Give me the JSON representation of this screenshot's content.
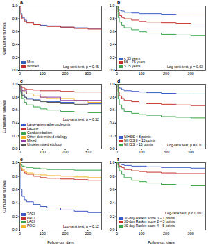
{
  "chart_data": [
    {
      "type": "line",
      "title": "a",
      "ylabel": "Cumulative survival",
      "x": [
        0,
        5,
        10,
        20,
        30,
        60,
        90,
        120,
        180,
        240,
        300,
        360
      ],
      "xlim": [
        0,
        360
      ],
      "xticks": [
        0,
        100,
        200,
        300
      ],
      "ylim": [
        0,
        1
      ],
      "yticks": [
        {
          "value": 0,
          "label": "0.0"
        },
        0.2,
        0.4,
        0.6,
        0.8,
        {
          "value": 1,
          "label": "1.0"
        }
      ],
      "line_style": "step",
      "legend": "bottom-left",
      "grid": false,
      "annotations": [
        "Log-rank test, p = 0.45"
      ],
      "series": [
        {
          "name": "Men",
          "color": "#3b5bc6",
          "values": [
            1,
            0.88,
            0.82,
            0.78,
            0.75,
            0.72,
            0.7,
            0.69,
            0.67,
            0.66,
            0.65,
            0.65
          ]
        },
        {
          "name": "Women",
          "color": "#c4302b",
          "values": [
            1,
            0.86,
            0.8,
            0.76,
            0.74,
            0.71,
            0.69,
            0.68,
            0.67,
            0.65,
            0.64,
            0.63
          ]
        }
      ]
    },
    {
      "type": "line",
      "title": "b",
      "x": [
        0,
        5,
        10,
        20,
        30,
        60,
        90,
        120,
        180,
        240,
        300,
        360
      ],
      "xlim": [
        0,
        360
      ],
      "xticks": [
        0,
        100,
        200,
        300
      ],
      "ylim": [
        0,
        1
      ],
      "yticks": [
        {
          "value": 0,
          "label": "0.0"
        },
        0.2,
        0.4,
        0.6,
        0.8,
        {
          "value": 1,
          "label": "1.0"
        }
      ],
      "line_style": "step",
      "legend": "bottom-left",
      "grid": false,
      "annotations": [
        "Log-rank test, p = 0.02"
      ],
      "series": [
        {
          "name": "≤ 55 years",
          "color": "#3b5bc6",
          "values": [
            1,
            0.95,
            0.93,
            0.92,
            0.9,
            0.89,
            0.88,
            0.88,
            0.87,
            0.86,
            0.86,
            0.86
          ]
        },
        {
          "name": "56 – 75 years",
          "color": "#c4302b",
          "values": [
            1,
            0.9,
            0.85,
            0.82,
            0.8,
            0.78,
            0.76,
            0.75,
            0.74,
            0.73,
            0.72,
            0.72
          ]
        },
        {
          "name": "> 75 years",
          "color": "#3aa54a",
          "values": [
            1,
            0.82,
            0.75,
            0.7,
            0.66,
            0.63,
            0.6,
            0.58,
            0.56,
            0.55,
            0.54,
            0.53
          ]
        }
      ]
    },
    {
      "type": "line",
      "title": "c",
      "ylabel": "Cumulative survival",
      "x": [
        0,
        5,
        10,
        20,
        30,
        60,
        90,
        120,
        180,
        240,
        300,
        360
      ],
      "xlim": [
        0,
        360
      ],
      "xticks": [
        0,
        100,
        200,
        300
      ],
      "ylim": [
        0,
        1
      ],
      "yticks": [
        {
          "value": 0,
          "label": "0.0"
        },
        0.2,
        0.4,
        0.6,
        0.8,
        {
          "value": 1,
          "label": "1.0"
        }
      ],
      "line_style": "step",
      "legend": "bottom-left",
      "grid": false,
      "annotations": [
        "Log-rank test, p = 0.52"
      ],
      "series": [
        {
          "name": "Large-artery atherosclerosis",
          "color": "#3b5bc6",
          "values": [
            1,
            0.9,
            0.85,
            0.8,
            0.78,
            0.76,
            0.74,
            0.73,
            0.72,
            0.71,
            0.7,
            0.7
          ]
        },
        {
          "name": "Lacune",
          "color": "#c4302b",
          "values": [
            1,
            0.97,
            0.95,
            0.93,
            0.92,
            0.91,
            0.9,
            0.9,
            0.89,
            0.88,
            0.88,
            0.88
          ]
        },
        {
          "name": "Cardioembolism",
          "color": "#3aa54a",
          "values": [
            1,
            0.85,
            0.78,
            0.72,
            0.68,
            0.65,
            0.62,
            0.6,
            0.58,
            0.57,
            0.56,
            0.55
          ]
        },
        {
          "name": "Other determined etiology",
          "color": "#f0b429",
          "values": [
            1,
            0.92,
            0.9,
            0.88,
            0.85,
            0.82,
            0.8,
            0.78,
            0.78,
            0.75,
            0.72,
            0.72
          ]
        },
        {
          "name": "Mixed",
          "color": "#8b3fa8",
          "values": [
            1,
            0.95,
            0.9,
            0.9,
            0.85,
            0.85,
            0.8,
            0.8,
            0.75,
            0.75,
            0.75,
            0.75
          ]
        },
        {
          "name": "Undetermined etiology",
          "color": "#555555",
          "values": [
            1,
            0.88,
            0.83,
            0.8,
            0.77,
            0.75,
            0.73,
            0.72,
            0.7,
            0.69,
            0.68,
            0.68
          ]
        }
      ]
    },
    {
      "type": "line",
      "title": "d",
      "x": [
        0,
        5,
        10,
        20,
        30,
        60,
        90,
        120,
        180,
        240,
        300,
        360
      ],
      "xlim": [
        0,
        360
      ],
      "xticks": [
        0,
        100,
        200,
        300
      ],
      "ylim": [
        0,
        1
      ],
      "yticks": [
        {
          "value": 0,
          "label": "0.0"
        },
        0.2,
        0.4,
        0.6,
        0.8,
        {
          "value": 1,
          "label": "1.0"
        }
      ],
      "line_style": "step",
      "legend": "bottom-left",
      "grid": false,
      "annotations": [
        "Log-rank test, p = 0.01"
      ],
      "series": [
        {
          "name": "NIHSS < 8 points",
          "color": "#3b5bc6",
          "values": [
            1,
            0.96,
            0.94,
            0.92,
            0.9,
            0.89,
            0.88,
            0.87,
            0.86,
            0.85,
            0.85,
            0.84
          ]
        },
        {
          "name": "NIHSS 8 – 15 points",
          "color": "#c4302b",
          "values": [
            1,
            0.88,
            0.82,
            0.78,
            0.75,
            0.73,
            0.71,
            0.7,
            0.69,
            0.68,
            0.67,
            0.67
          ]
        },
        {
          "name": "NIHSS > 15 points",
          "color": "#3aa54a",
          "values": [
            1,
            0.78,
            0.68,
            0.62,
            0.58,
            0.55,
            0.53,
            0.52,
            0.5,
            0.49,
            0.48,
            0.48
          ]
        }
      ]
    },
    {
      "type": "line",
      "title": "e",
      "ylabel": "Cumulative survival",
      "xlabel": "Follow-up, days",
      "x": [
        0,
        5,
        10,
        20,
        30,
        60,
        90,
        120,
        180,
        240,
        300,
        360
      ],
      "xlim": [
        0,
        360
      ],
      "xticks": [
        0,
        100,
        200,
        300
      ],
      "ylim": [
        0,
        1
      ],
      "yticks": [
        {
          "value": 0,
          "label": "0.0"
        },
        0.2,
        0.4,
        0.6,
        0.8,
        {
          "value": 1,
          "label": "1.0"
        }
      ],
      "line_style": "step",
      "legend": "bottom-left",
      "grid": false,
      "annotations": [
        "Log-rank test, p = 0.12"
      ],
      "series": [
        {
          "name": "TACI",
          "color": "#3b5bc6",
          "values": [
            1,
            0.6,
            0.5,
            0.45,
            0.42,
            0.38,
            0.35,
            0.33,
            0.3,
            0.28,
            0.26,
            0.25
          ]
        },
        {
          "name": "PACI",
          "color": "#c4302b",
          "values": [
            1,
            0.92,
            0.88,
            0.85,
            0.83,
            0.8,
            0.78,
            0.77,
            0.76,
            0.75,
            0.74,
            0.74
          ]
        },
        {
          "name": "LACI",
          "color": "#3aa54a",
          "values": [
            1,
            0.97,
            0.95,
            0.94,
            0.93,
            0.92,
            0.91,
            0.9,
            0.9,
            0.89,
            0.89,
            0.88
          ]
        },
        {
          "name": "POCI",
          "color": "#f0b429",
          "values": [
            1,
            0.93,
            0.9,
            0.87,
            0.85,
            0.83,
            0.82,
            0.81,
            0.8,
            0.79,
            0.78,
            0.78
          ]
        }
      ]
    },
    {
      "type": "line",
      "title": "f",
      "xlabel": "Follow-up, days",
      "x": [
        0,
        5,
        10,
        20,
        30,
        60,
        90,
        120,
        180,
        240,
        300,
        360
      ],
      "xlim": [
        0,
        360
      ],
      "xticks": [
        0,
        100,
        200,
        300
      ],
      "ylim": [
        0,
        1
      ],
      "yticks": [
        {
          "value": 0,
          "label": "0.0"
        },
        0.2,
        0.4,
        0.6,
        0.8,
        {
          "value": 1,
          "label": "1.0"
        }
      ],
      "line_style": "step",
      "legend": "bottom-left",
      "grid": false,
      "annotations": [
        "Log-rank test, p < 0.001"
      ],
      "series": [
        {
          "name": "30-day Rankin score 0 – 1 points",
          "color": "#3b5bc6",
          "values": [
            1,
            0.99,
            0.98,
            0.97,
            0.96,
            0.95,
            0.95,
            0.94,
            0.93,
            0.93,
            0.92,
            0.92
          ]
        },
        {
          "name": "30-day Rankin score 2 – 3 points",
          "color": "#c4302b",
          "values": [
            1,
            0.97,
            0.95,
            0.93,
            0.9,
            0.88,
            0.87,
            0.86,
            0.85,
            0.84,
            0.84,
            0.83
          ]
        },
        {
          "name": "30-day Rankin score 4 – 5 points",
          "color": "#3aa54a",
          "values": [
            1,
            0.93,
            0.88,
            0.83,
            0.78,
            0.74,
            0.72,
            0.7,
            0.68,
            0.67,
            0.66,
            0.66
          ]
        }
      ]
    }
  ]
}
